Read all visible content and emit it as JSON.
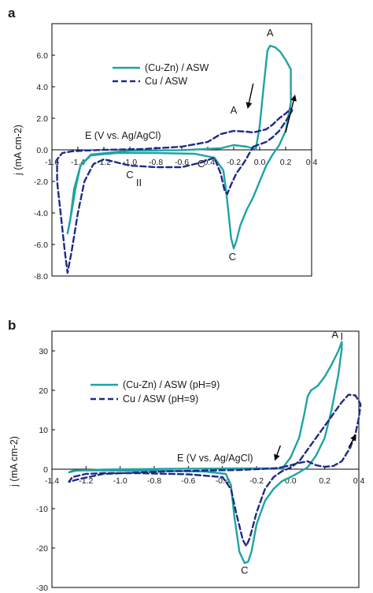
{
  "chart_data": [
    {
      "type": "line",
      "panel_label": "a",
      "xlabel": "E (V vs. Ag/AgCl)",
      "ylabel": "j (mA cm-2)",
      "xlim": [
        -1.6,
        0.4
      ],
      "ylim": [
        -8.0,
        8.0
      ],
      "x_ticks": [
        -1.6,
        -1.4,
        -1.2,
        -1.0,
        -0.8,
        -0.6,
        -0.4,
        -0.2,
        0.0,
        0.2,
        0.4
      ],
      "x_tick_labels": [
        "-1.6",
        "-1.4",
        "-1.2",
        "-1.0",
        "-0.8",
        "-0.6",
        "-0.4",
        "-0.2",
        "0.0",
        "0.2",
        "0.4"
      ],
      "y_ticks": [
        -8.0,
        -6.0,
        -4.0,
        -2.0,
        0.0,
        2.0,
        4.0,
        6.0
      ],
      "y_tick_labels": [
        "-8.0",
        "-6.0",
        "-4.0",
        "-2.0",
        "0.0",
        "2.0",
        "4.0",
        "6.0"
      ],
      "grid": false,
      "legend_position": "upper-center",
      "annotations": [
        {
          "text": "A",
          "x": 0.08,
          "y": 7.2
        },
        {
          "text": "A",
          "x": -0.2,
          "y": 2.3
        },
        {
          "text": "C",
          "x": -0.21,
          "y": -7.0
        },
        {
          "text": "C",
          "x": -0.45,
          "y": -1.1
        },
        {
          "text": "C",
          "x": -1.0,
          "y": -1.8
        },
        {
          "text": "II",
          "x": -0.93,
          "y": -2.3
        }
      ],
      "arrows": [
        {
          "from": [
            -0.05,
            4.2
          ],
          "to": [
            -0.09,
            2.7
          ]
        },
        {
          "from": [
            0.2,
            1.1
          ],
          "to": [
            0.27,
            3.4
          ]
        }
      ],
      "series": [
        {
          "name": "(Cu-Zn) / ASW",
          "color": "#1fa3a3",
          "dash": "solid",
          "points": [
            [
              -0.03,
              0.05
            ],
            [
              0.0,
              1.5
            ],
            [
              0.03,
              4.0
            ],
            [
              0.06,
              6.3
            ],
            [
              0.08,
              6.6
            ],
            [
              0.12,
              6.5
            ],
            [
              0.16,
              6.2
            ],
            [
              0.2,
              5.7
            ],
            [
              0.24,
              5.1
            ],
            [
              0.24,
              3.0
            ],
            [
              0.2,
              1.2
            ],
            [
              0.15,
              0.3
            ],
            [
              0.1,
              -0.3
            ],
            [
              0.05,
              -1.0
            ],
            [
              0.0,
              -2.0
            ],
            [
              -0.05,
              -3.0
            ],
            [
              -0.1,
              -3.8
            ],
            [
              -0.15,
              -4.8
            ],
            [
              -0.18,
              -5.8
            ],
            [
              -0.2,
              -6.25
            ],
            [
              -0.22,
              -5.6
            ],
            [
              -0.24,
              -4.0
            ],
            [
              -0.26,
              -2.5
            ],
            [
              -0.28,
              -1.3
            ],
            [
              -0.35,
              -0.5
            ],
            [
              -0.5,
              -0.25
            ],
            [
              -0.8,
              -0.2
            ],
            [
              -1.1,
              -0.2
            ],
            [
              -1.3,
              -0.35
            ],
            [
              -1.38,
              -1.0
            ],
            [
              -1.42,
              -2.5
            ],
            [
              -1.45,
              -4.0
            ],
            [
              -1.48,
              -5.3
            ],
            [
              -1.46,
              -4.5
            ],
            [
              -1.43,
              -2.5
            ],
            [
              -1.38,
              -1.0
            ],
            [
              -1.3,
              -0.3
            ],
            [
              -1.0,
              -0.05
            ],
            [
              -0.6,
              -0.02
            ],
            [
              -0.3,
              0.1
            ],
            [
              -0.2,
              0.3
            ],
            [
              -0.1,
              0.2
            ],
            [
              -0.03,
              0.05
            ]
          ]
        },
        {
          "name": "Cu / ASW",
          "color": "#1f2a85",
          "dash": "dashed",
          "points": [
            [
              -0.05,
              0.2
            ],
            [
              0.05,
              0.5
            ],
            [
              0.1,
              0.8
            ],
            [
              0.15,
              1.2
            ],
            [
              0.2,
              1.8
            ],
            [
              0.25,
              2.5
            ],
            [
              0.24,
              2.6
            ],
            [
              0.2,
              2.3
            ],
            [
              0.15,
              2.0
            ],
            [
              0.1,
              1.6
            ],
            [
              0.05,
              1.3
            ],
            [
              0.0,
              1.2
            ],
            [
              -0.05,
              1.1
            ],
            [
              -0.1,
              1.15
            ],
            [
              -0.2,
              1.2
            ],
            [
              -0.3,
              1.0
            ],
            [
              -0.4,
              0.5
            ],
            [
              -0.6,
              0.2
            ],
            [
              -0.9,
              0.05
            ],
            [
              -1.2,
              0.0
            ],
            [
              -1.35,
              -0.05
            ],
            [
              -1.45,
              -0.1
            ],
            [
              -1.52,
              -0.2
            ],
            [
              -1.56,
              -0.6
            ],
            [
              -1.56,
              -2.0
            ],
            [
              -1.54,
              -3.5
            ],
            [
              -1.52,
              -5.0
            ],
            [
              -1.5,
              -6.5
            ],
            [
              -1.48,
              -7.8
            ],
            [
              -1.45,
              -6.5
            ],
            [
              -1.4,
              -4.0
            ],
            [
              -1.35,
              -2.0
            ],
            [
              -1.28,
              -0.9
            ],
            [
              -1.2,
              -0.6
            ],
            [
              -1.1,
              -0.8
            ],
            [
              -1.0,
              -1.0
            ],
            [
              -0.8,
              -1.1
            ],
            [
              -0.6,
              -1.1
            ],
            [
              -0.45,
              -0.8
            ],
            [
              -0.35,
              -0.5
            ],
            [
              -0.3,
              -1.5
            ],
            [
              -0.27,
              -2.6
            ],
            [
              -0.25,
              -2.8
            ],
            [
              -0.22,
              -2.2
            ],
            [
              -0.18,
              -1.5
            ],
            [
              -0.12,
              -0.8
            ],
            [
              -0.05,
              0.2
            ]
          ]
        }
      ]
    },
    {
      "type": "line",
      "panel_label": "b",
      "xlabel": "E (V vs. Ag/AgCl)",
      "ylabel": "j (mA cm-2)",
      "xlim": [
        -1.4,
        0.4
      ],
      "ylim": [
        -30,
        35
      ],
      "x_ticks": [
        -1.4,
        -1.2,
        -1.0,
        -0.8,
        -0.6,
        -0.4,
        -0.2,
        0.0,
        0.2,
        0.4
      ],
      "x_tick_labels": [
        "-1.4",
        "-1.2",
        "-1.0",
        "-0.8",
        "-0.6",
        "-0.4",
        "-0.2",
        "0.0",
        "0.2",
        "0.4"
      ],
      "y_ticks": [
        -30,
        -20,
        -10,
        0,
        10,
        20,
        30
      ],
      "y_tick_labels": [
        "-30",
        "-20",
        "-10",
        "0",
        "10",
        "20",
        "30"
      ],
      "grid": false,
      "legend_position": "center-right",
      "annotations": [
        {
          "text": "A",
          "x": 0.26,
          "y": 33.3
        },
        {
          "text": "I",
          "x": 0.3,
          "y": 32.8
        },
        {
          "text": "C",
          "x": -0.27,
          "y": -26.5
        }
      ],
      "arrows": [
        {
          "from": [
            -0.06,
            6.0
          ],
          "to": [
            -0.09,
            2.5
          ]
        },
        {
          "from": [
            0.34,
            5.5
          ],
          "to": [
            0.38,
            8.5
          ]
        }
      ],
      "series": [
        {
          "name": "(Cu-Zn) / ASW (pH=9)",
          "color": "#1fa3a3",
          "dash": "solid",
          "points": [
            [
              -0.05,
              0.1
            ],
            [
              0.0,
              3.0
            ],
            [
              0.05,
              8.0
            ],
            [
              0.08,
              14.0
            ],
            [
              0.1,
              18.5
            ],
            [
              0.12,
              20.0
            ],
            [
              0.16,
              21.2
            ],
            [
              0.2,
              23.5
            ],
            [
              0.24,
              26.5
            ],
            [
              0.28,
              30.0
            ],
            [
              0.3,
              32.3
            ],
            [
              0.3,
              30.5
            ],
            [
              0.28,
              24.0
            ],
            [
              0.24,
              15.0
            ],
            [
              0.2,
              8.0
            ],
            [
              0.15,
              3.5
            ],
            [
              0.1,
              0.5
            ],
            [
              0.05,
              -0.8
            ],
            [
              0.0,
              -2.0
            ],
            [
              -0.05,
              -3.0
            ],
            [
              -0.1,
              -5.0
            ],
            [
              -0.15,
              -8.0
            ],
            [
              -0.2,
              -14.0
            ],
            [
              -0.23,
              -21.0
            ],
            [
              -0.25,
              -23.5
            ],
            [
              -0.27,
              -23.8
            ],
            [
              -0.3,
              -21.0
            ],
            [
              -0.33,
              -12.0
            ],
            [
              -0.35,
              -4.0
            ],
            [
              -0.38,
              -1.2
            ],
            [
              -0.5,
              -0.6
            ],
            [
              -0.8,
              -0.4
            ],
            [
              -1.1,
              -0.3
            ],
            [
              -1.25,
              -0.3
            ],
            [
              -1.3,
              -0.8
            ],
            [
              -1.28,
              -0.4
            ],
            [
              -1.1,
              -0.1
            ],
            [
              -0.7,
              0.1
            ],
            [
              -0.3,
              0.2
            ],
            [
              -0.1,
              0.2
            ],
            [
              -0.05,
              0.1
            ]
          ]
        },
        {
          "name": "Cu / ASW (pH=9)",
          "color": "#1f2a85",
          "dash": "dashed",
          "points": [
            [
              -0.05,
              0.5
            ],
            [
              0.0,
              1.0
            ],
            [
              0.05,
              1.6
            ],
            [
              0.1,
              2.0
            ],
            [
              0.15,
              1.0
            ],
            [
              0.2,
              0.6
            ],
            [
              0.25,
              0.8
            ],
            [
              0.3,
              2.0
            ],
            [
              0.35,
              5.5
            ],
            [
              0.38,
              9.0
            ],
            [
              0.4,
              13.0
            ],
            [
              0.41,
              16.5
            ],
            [
              0.38,
              18.7
            ],
            [
              0.34,
              18.9
            ],
            [
              0.3,
              17.0
            ],
            [
              0.25,
              14.0
            ],
            [
              0.2,
              11.0
            ],
            [
              0.15,
              8.0
            ],
            [
              0.1,
              5.0
            ],
            [
              0.05,
              2.0
            ],
            [
              0.0,
              0.4
            ],
            [
              -0.05,
              -0.5
            ],
            [
              -0.1,
              -2.0
            ],
            [
              -0.15,
              -5.0
            ],
            [
              -0.2,
              -11.0
            ],
            [
              -0.24,
              -17.5
            ],
            [
              -0.26,
              -19.5
            ],
            [
              -0.28,
              -18.0
            ],
            [
              -0.32,
              -11.0
            ],
            [
              -0.35,
              -5.0
            ],
            [
              -0.4,
              -2.0
            ],
            [
              -0.6,
              -1.3
            ],
            [
              -0.9,
              -1.0
            ],
            [
              -1.1,
              -1.0
            ],
            [
              -1.2,
              -1.2
            ],
            [
              -1.28,
              -2.0
            ],
            [
              -1.3,
              -3.2
            ],
            [
              -1.25,
              -2.6
            ],
            [
              -1.1,
              -1.2
            ],
            [
              -0.7,
              -0.5
            ],
            [
              -0.3,
              -0.2
            ],
            [
              -0.1,
              0.2
            ],
            [
              -0.05,
              0.5
            ]
          ]
        }
      ]
    }
  ]
}
